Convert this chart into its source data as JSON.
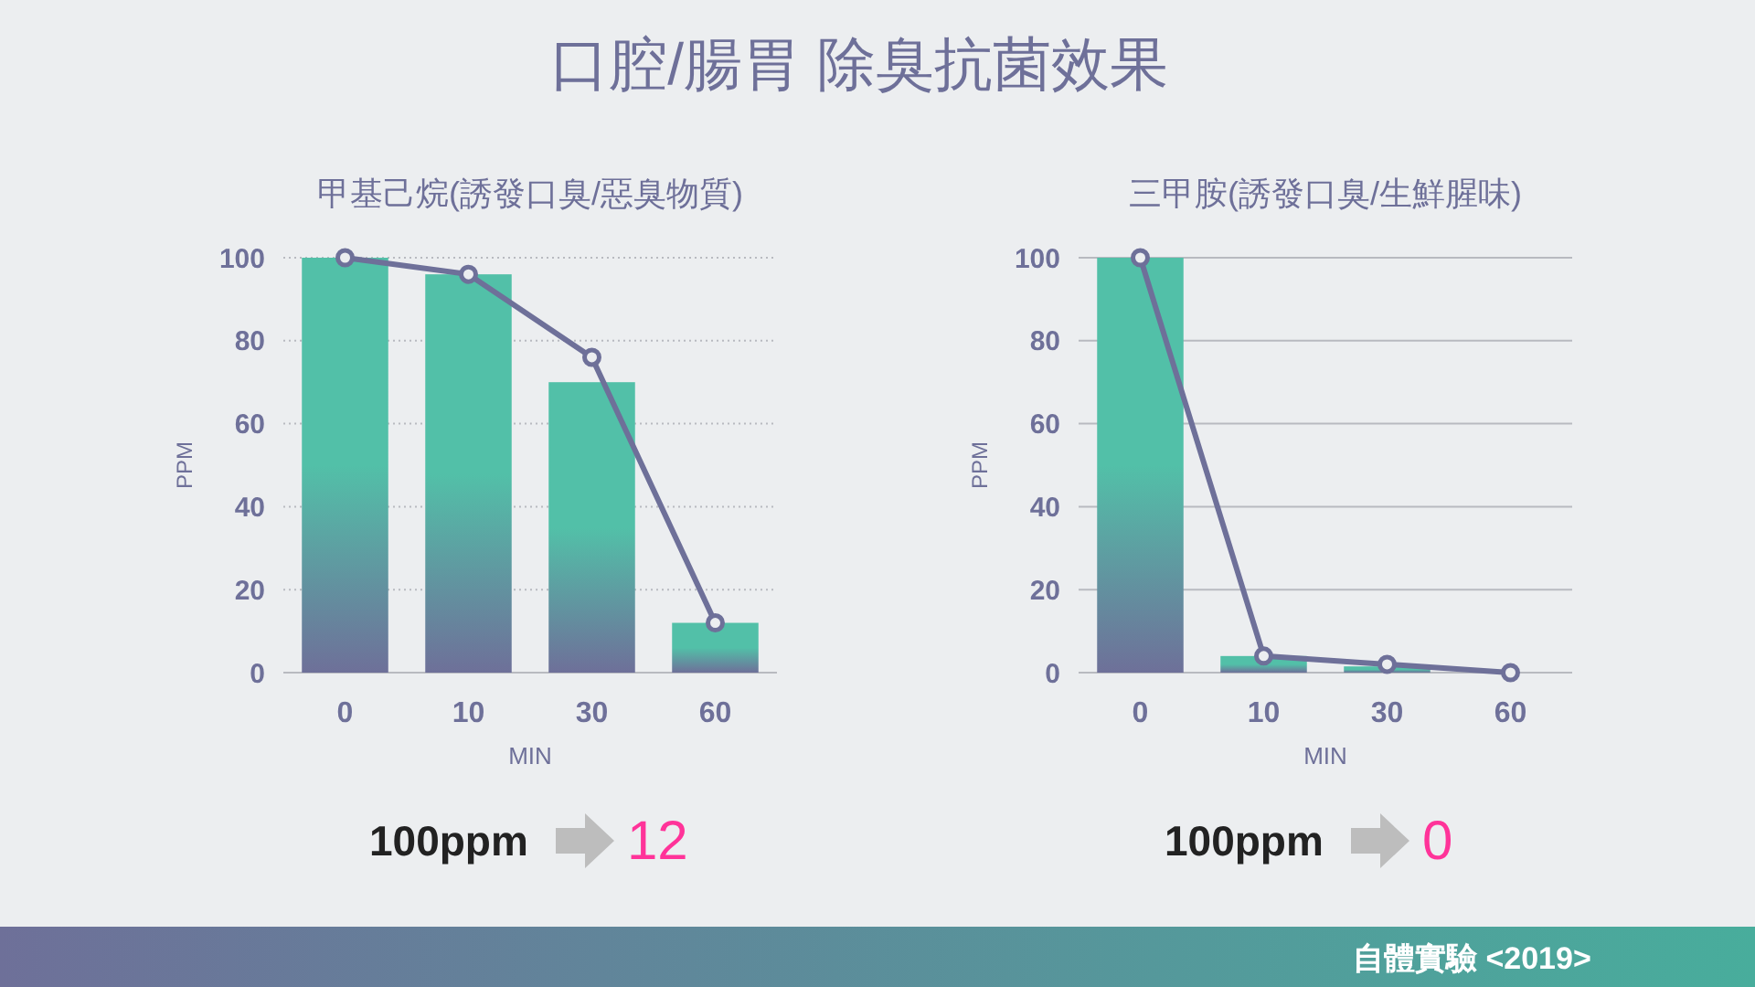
{
  "chart_data": [
    {
      "type": "bar",
      "title": "口腔/腸胃 除臭抗菌效果",
      "subtitle": "甲基己烷(誘發口臭/惡臭物質)",
      "xlabel": "MIN",
      "ylabel": "PPM",
      "categories": [
        "0",
        "10",
        "30",
        "60"
      ],
      "series": [
        {
          "color": "#52c0a8",
          "values": [
            100,
            96,
            70,
            12
          ]
        },
        {
          "type": "line",
          "color": "#6e7099",
          "values": [
            100,
            96,
            76,
            12
          ],
          "marker": "circle"
        }
      ],
      "ylim": [
        0,
        100
      ],
      "yticks": [
        0,
        20,
        40,
        60,
        80,
        100
      ],
      "grid": "y",
      "annotations": [
        "100ppm",
        "12"
      ]
    },
    {
      "type": "bar",
      "subtitle": "三甲胺(誘發口臭/生鮮腥味)",
      "xlabel": "MIN",
      "ylabel": "PPM",
      "categories": [
        "0",
        "10",
        "30",
        "60"
      ],
      "series": [
        {
          "color": "#52c0a8",
          "values": [
            100,
            4,
            1.5,
            0
          ]
        },
        {
          "type": "line",
          "color": "#6e7099",
          "values": [
            100,
            4,
            2,
            0
          ],
          "marker": "circle"
        }
      ],
      "ylim": [
        0,
        100
      ],
      "yticks": [
        0,
        20,
        40,
        60,
        80,
        100
      ],
      "grid": "y",
      "annotations": [
        "100ppm",
        "0",
        "自體實驗 <2019>"
      ]
    }
  ]
}
